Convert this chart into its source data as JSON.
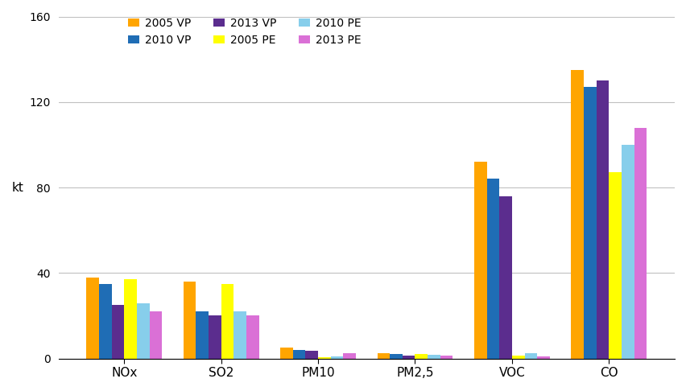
{
  "categories": [
    "NOx",
    "SO2",
    "PM10",
    "PM2,5",
    "VOC",
    "CO"
  ],
  "series": {
    "2005 VP": [
      38,
      36,
      5,
      2.5,
      92,
      135
    ],
    "2010 VP": [
      35,
      22,
      4,
      2,
      84,
      127
    ],
    "2013 VP": [
      25,
      20,
      3.5,
      1.5,
      76,
      130
    ],
    "2005 PE": [
      37,
      35,
      0.5,
      2,
      1.5,
      87
    ],
    "2010 PE": [
      26,
      22,
      0.8,
      1.8,
      2.5,
      100
    ],
    "2013 PE": [
      22,
      20,
      2.5,
      1.5,
      1.0,
      108
    ]
  },
  "colors": {
    "2005 VP": "#FFA500",
    "2010 VP": "#1F6DB5",
    "2013 VP": "#5B2D8E",
    "2005 PE": "#FFFF00",
    "2010 PE": "#87CEEB",
    "2013 PE": "#DA70D6"
  },
  "ylim": [
    0,
    160
  ],
  "yticks": [
    0,
    40,
    80,
    120,
    160
  ],
  "ylabel": "kt",
  "background_color": "#ffffff",
  "grid_color": "#c0c0c0",
  "bar_width": 0.13,
  "figsize": [
    8.53,
    4.86
  ],
  "dpi": 100
}
